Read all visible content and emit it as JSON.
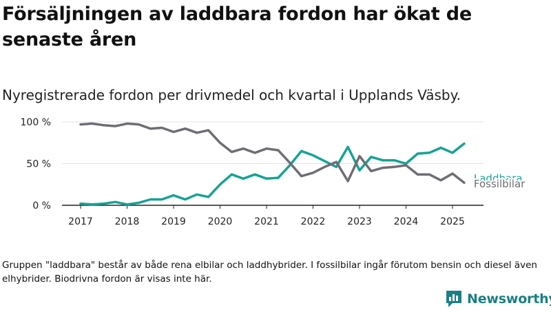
{
  "title": "Försäljningen av laddbara fordon har ökat de senaste åren",
  "subtitle": "Nyregistrerade fordon per drivmedel och kvartal i Upplands Väsby.",
  "note": "Gruppen \"laddbara\" består av både rena elbilar och laddhybrider. I fossilbilar ingår förutom bensin och diesel även elhybrider. Biodrivna fordon är visas inte här.",
  "brand": {
    "name": "Newsworthy",
    "icon": "newsworthy-logo-icon",
    "color": "#1b7f86"
  },
  "chart_data": {
    "type": "line",
    "x_unit": "quarter",
    "x": [
      "2017-Q1",
      "2017-Q2",
      "2017-Q3",
      "2017-Q4",
      "2018-Q1",
      "2018-Q2",
      "2018-Q3",
      "2018-Q4",
      "2019-Q1",
      "2019-Q2",
      "2019-Q3",
      "2019-Q4",
      "2020-Q1",
      "2020-Q2",
      "2020-Q3",
      "2020-Q4",
      "2021-Q1",
      "2021-Q2",
      "2021-Q3",
      "2021-Q4",
      "2022-Q1",
      "2022-Q2",
      "2022-Q3",
      "2022-Q4",
      "2023-Q1",
      "2023-Q2",
      "2023-Q3",
      "2023-Q4",
      "2024-Q1",
      "2024-Q2",
      "2024-Q3",
      "2024-Q4",
      "2025-Q1",
      "2025-Q2"
    ],
    "x_ticks": [
      "2017",
      "2018",
      "2019",
      "2020",
      "2021",
      "2022",
      "2023",
      "2024",
      "2025"
    ],
    "y_ticks": [
      "0 %",
      "50 %",
      "100 %"
    ],
    "ylim": [
      0,
      100
    ],
    "grid": "horizontal",
    "series": [
      {
        "name": "Laddbara",
        "color": "#14a394",
        "values": [
          2,
          1,
          2,
          4,
          1,
          3,
          7,
          7,
          12,
          7,
          13,
          10,
          25,
          37,
          32,
          37,
          32,
          33,
          48,
          65,
          60,
          53,
          46,
          70,
          42,
          58,
          54,
          54,
          50,
          62,
          63,
          69,
          63,
          74
        ]
      },
      {
        "name": "Fossilbilar",
        "color": "#6f6d73",
        "values": [
          97,
          98,
          96,
          95,
          98,
          97,
          92,
          93,
          88,
          92,
          87,
          90,
          75,
          64,
          68,
          63,
          68,
          66,
          51,
          35,
          39,
          46,
          52,
          29,
          59,
          41,
          45,
          46,
          48,
          37,
          37,
          30,
          38,
          27
        ]
      }
    ]
  }
}
